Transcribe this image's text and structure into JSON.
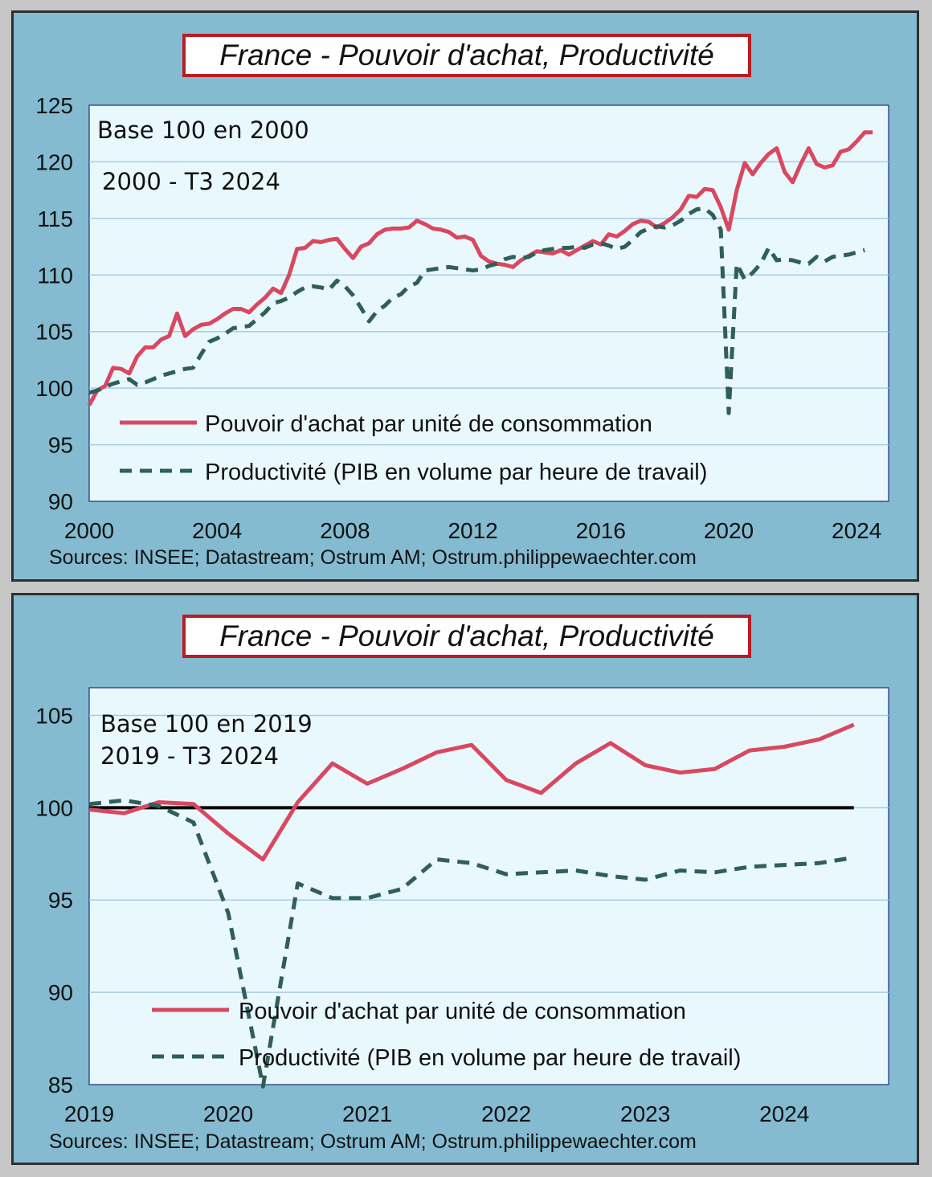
{
  "chart_data": [
    {
      "type": "line",
      "title": "France - Pouvoir d'achat, Productivité",
      "note_lines": [
        "Base 100 en 2000",
        "2000 - T3 2024"
      ],
      "source": "Sources: INSEE; Datastream; Ostrum AM; Ostrum.philippewaechter.com",
      "xlim": [
        2000,
        2025
      ],
      "ylim": [
        90,
        125
      ],
      "yticks": [
        90,
        95,
        100,
        105,
        110,
        115,
        120,
        125
      ],
      "xticks": [
        2000,
        2004,
        2008,
        2012,
        2016,
        2020,
        2024
      ],
      "grid": true,
      "legend_position": "bottom-left",
      "colors": {
        "purchasing_power": "#d9485f",
        "productivity": "#2f5f58",
        "plot_bg": "#e9f8fd",
        "grid": "#a8cce6"
      },
      "series": [
        {
          "name": "Pouvoir d'achat par unité de consommation",
          "style": "solid",
          "x": [
            2000.0,
            2000.25,
            2000.5,
            2000.75,
            2001.0,
            2001.25,
            2001.5,
            2001.75,
            2002.0,
            2002.25,
            2002.5,
            2002.75,
            2003.0,
            2003.25,
            2003.5,
            2003.75,
            2004.0,
            2004.25,
            2004.5,
            2004.75,
            2005.0,
            2005.25,
            2005.5,
            2005.75,
            2006.0,
            2006.25,
            2006.5,
            2006.75,
            2007.0,
            2007.25,
            2007.5,
            2007.75,
            2008.0,
            2008.25,
            2008.5,
            2008.75,
            2009.0,
            2009.25,
            2009.5,
            2009.75,
            2010.0,
            2010.25,
            2010.5,
            2010.75,
            2011.0,
            2011.25,
            2011.5,
            2011.75,
            2012.0,
            2012.25,
            2012.5,
            2012.75,
            2013.0,
            2013.25,
            2013.5,
            2013.75,
            2014.0,
            2014.25,
            2014.5,
            2014.75,
            2015.0,
            2015.25,
            2015.5,
            2015.75,
            2016.0,
            2016.25,
            2016.5,
            2016.75,
            2017.0,
            2017.25,
            2017.5,
            2017.75,
            2018.0,
            2018.25,
            2018.5,
            2018.75,
            2019.0,
            2019.25,
            2019.5,
            2019.75,
            2020.0,
            2020.25,
            2020.5,
            2020.75,
            2021.0,
            2021.25,
            2021.5,
            2021.75,
            2022.0,
            2022.25,
            2022.5,
            2022.75,
            2023.0,
            2023.25,
            2023.5,
            2023.75,
            2024.0,
            2024.25,
            2024.5
          ],
          "values": [
            98.5,
            99.8,
            100.2,
            101.8,
            101.7,
            101.3,
            102.8,
            103.6,
            103.6,
            104.3,
            104.6,
            106.6,
            104.6,
            105.2,
            105.6,
            105.7,
            106.1,
            106.6,
            107.0,
            107.0,
            106.7,
            107.4,
            108.0,
            108.8,
            108.4,
            110.0,
            112.3,
            112.4,
            113.0,
            112.9,
            113.1,
            113.2,
            112.3,
            111.5,
            112.5,
            112.8,
            113.6,
            114.0,
            114.1,
            114.1,
            114.2,
            114.8,
            114.5,
            114.1,
            114.0,
            113.8,
            113.3,
            113.4,
            113.1,
            111.7,
            111.2,
            111.0,
            110.9,
            110.7,
            111.3,
            111.7,
            112.1,
            112.0,
            111.9,
            112.2,
            111.8,
            112.2,
            112.6,
            113.0,
            112.7,
            113.6,
            113.4,
            113.9,
            114.5,
            114.8,
            114.7,
            114.2,
            114.6,
            115.1,
            115.8,
            117.0,
            116.9,
            117.6,
            117.5,
            116.0,
            114.0,
            117.5,
            119.9,
            118.9,
            119.9,
            120.7,
            121.2,
            119.1,
            118.2,
            119.8,
            121.2,
            119.8,
            119.5,
            119.7,
            120.9,
            121.1,
            121.8,
            122.6,
            122.6
          ],
          "display_x": [
            2000.0,
            2000.25,
            2000.5,
            2000.75,
            2001.0,
            2001.25,
            2001.5,
            2001.75,
            2002.0,
            2002.25,
            2002.5,
            2002.75,
            2003.0,
            2003.25,
            2003.5,
            2003.75,
            2004.0,
            2004.25,
            2004.5,
            2004.75,
            2005.0,
            2005.25,
            2005.5,
            2005.75,
            2006.0,
            2006.25,
            2006.5,
            2006.75,
            2007.0,
            2007.25,
            2007.5,
            2007.75,
            2008.0,
            2008.25,
            2008.5,
            2008.75,
            2009.0,
            2009.25,
            2009.5,
            2009.75,
            2010.0,
            2010.25,
            2010.5,
            2010.75,
            2011.0,
            2011.25,
            2011.5,
            2011.75,
            2012.0,
            2012.25,
            2012.5,
            2012.75,
            2013.0,
            2013.25,
            2013.5,
            2013.75,
            2014.0,
            2014.25,
            2014.5,
            2014.75,
            2015.0,
            2015.25,
            2015.5,
            2015.75,
            2016.0,
            2016.25,
            2016.5,
            2016.75,
            2017.0,
            2017.25,
            2017.5,
            2017.75,
            2018.0,
            2018.25,
            2018.5,
            2018.75,
            2019.0,
            2019.25,
            2019.5,
            2019.75,
            2020.0,
            2020.25,
            2020.5,
            2020.75,
            2021.0,
            2021.25,
            2021.5,
            2021.75,
            2022.0,
            2022.25,
            2022.5,
            2022.75,
            2023.0,
            2023.25,
            2023.5,
            2023.75,
            2024.0,
            2024.25,
            2024.5
          ]
        },
        {
          "name": "Productivité (PIB en volume par heure de travail)",
          "style": "dashed",
          "x": [
            2000.0,
            2000.25,
            2000.5,
            2000.75,
            2001.0,
            2001.25,
            2001.5,
            2001.75,
            2002.0,
            2002.25,
            2002.5,
            2002.75,
            2003.0,
            2003.25,
            2003.5,
            2003.75,
            2004.0,
            2004.25,
            2004.5,
            2004.75,
            2005.0,
            2005.25,
            2005.5,
            2005.75,
            2006.0,
            2006.25,
            2006.5,
            2006.75,
            2007.0,
            2007.25,
            2007.5,
            2007.75,
            2008.0,
            2008.25,
            2008.5,
            2008.75,
            2009.0,
            2009.25,
            2009.5,
            2009.75,
            2010.0,
            2010.25,
            2010.5,
            2010.75,
            2011.0,
            2011.25,
            2011.5,
            2011.75,
            2012.0,
            2012.25,
            2012.5,
            2012.75,
            2013.0,
            2013.25,
            2013.5,
            2013.75,
            2014.0,
            2014.25,
            2014.5,
            2014.75,
            2015.0,
            2015.25,
            2015.5,
            2015.75,
            2016.0,
            2016.25,
            2016.5,
            2016.75,
            2017.0,
            2017.25,
            2017.5,
            2017.75,
            2018.0,
            2018.25,
            2018.5,
            2018.75,
            2019.0,
            2019.25,
            2019.5,
            2019.75,
            2020.0,
            2020.25,
            2020.5,
            2020.75,
            2021.0,
            2021.25,
            2021.5,
            2021.75,
            2022.0,
            2022.25,
            2022.5,
            2022.75,
            2023.0,
            2023.25,
            2023.5,
            2023.75,
            2024.0,
            2024.25
          ],
          "values": [
            99.6,
            99.8,
            100.1,
            100.4,
            100.6,
            100.8,
            100.3,
            100.5,
            100.8,
            101.1,
            101.3,
            101.5,
            101.7,
            101.8,
            103.0,
            104.1,
            104.4,
            104.8,
            105.3,
            105.4,
            105.5,
            106.1,
            106.7,
            107.5,
            107.7,
            108.0,
            108.5,
            108.9,
            109.0,
            108.9,
            108.7,
            109.5,
            109.0,
            108.2,
            107.1,
            105.9,
            106.8,
            107.3,
            108.0,
            108.3,
            109.0,
            109.3,
            110.4,
            110.5,
            110.6,
            110.7,
            110.6,
            110.5,
            110.4,
            110.5,
            110.8,
            111.0,
            111.4,
            111.6,
            111.5,
            111.6,
            112.0,
            112.2,
            112.3,
            112.4,
            112.4,
            112.5,
            112.4,
            112.7,
            112.8,
            112.6,
            112.3,
            112.5,
            113.1,
            113.8,
            114.1,
            114.3,
            114.2,
            114.4,
            114.8,
            115.4,
            115.8,
            115.9,
            115.3,
            114.0,
            97.8,
            111.0,
            109.6,
            110.2,
            111.0,
            112.4,
            111.3,
            111.4,
            111.3,
            111.1,
            111.0,
            111.6,
            111.2,
            111.6,
            111.7,
            111.8,
            112.0,
            112.2
          ],
          "display_x": [
            2000.0,
            2000.25,
            2000.5,
            2000.75,
            2001.0,
            2001.25,
            2001.5,
            2001.75,
            2002.0,
            2002.25,
            2002.5,
            2002.75,
            2003.0,
            2003.25,
            2003.5,
            2003.75,
            2004.0,
            2004.25,
            2004.5,
            2004.75,
            2005.0,
            2005.25,
            2005.5,
            2005.75,
            2006.0,
            2006.25,
            2006.5,
            2006.75,
            2007.0,
            2007.25,
            2007.5,
            2007.75,
            2008.0,
            2008.25,
            2008.5,
            2008.75,
            2009.0,
            2009.25,
            2009.5,
            2009.75,
            2010.0,
            2010.25,
            2010.5,
            2010.75,
            2011.0,
            2011.25,
            2011.5,
            2011.75,
            2012.0,
            2012.25,
            2012.5,
            2012.75,
            2013.0,
            2013.25,
            2013.5,
            2013.75,
            2014.0,
            2014.25,
            2014.5,
            2014.75,
            2015.0,
            2015.25,
            2015.5,
            2015.75,
            2016.0,
            2016.25,
            2016.5,
            2016.75,
            2017.0,
            2017.25,
            2017.5,
            2017.75,
            2018.0,
            2018.25,
            2018.5,
            2018.75,
            2019.0,
            2019.25,
            2019.5,
            2019.75,
            2020.0,
            2020.25,
            2020.5,
            2020.75,
            2021.0,
            2021.25,
            2021.5,
            2021.75,
            2022.0,
            2022.25,
            2022.5,
            2022.75,
            2023.0,
            2023.25,
            2023.5,
            2023.75,
            2024.0,
            2024.25
          ]
        }
      ]
    },
    {
      "type": "line",
      "title": "France - Pouvoir d'achat, Productivité",
      "note_lines": [
        "Base 100 en 2019",
        "2019 - T3 2024"
      ],
      "source": "Sources: INSEE; Datastream; Ostrum AM; Ostrum.philippewaechter.com",
      "xlim": [
        2019,
        2024.75
      ],
      "ylim": [
        85,
        106.5
      ],
      "yticks": [
        85,
        90,
        95,
        100,
        105
      ],
      "xticks": [
        2019,
        2020,
        2021,
        2022,
        2023,
        2024
      ],
      "grid": true,
      "reference_line": 100,
      "legend_position": "bottom-left",
      "colors": {
        "purchasing_power": "#d9485f",
        "productivity": "#2f5f58",
        "reference": "#000000",
        "plot_bg": "#e9f8fd",
        "grid": "#a8cce6"
      },
      "series": [
        {
          "name": "Pouvoir d'achat par unité de consommation",
          "style": "solid",
          "x": [
            "T1 2019",
            "T2 2019",
            "T3 2019",
            "T4 2019",
            "T1 2020",
            "T2 2020",
            "T3 2020",
            "T4 2020",
            "T1 2021",
            "T2 2021",
            "T3 2021",
            "T4 2021",
            "T1 2022",
            "T2 2022",
            "T3 2022",
            "T4 2022",
            "T1 2023",
            "T2 2023",
            "T3 2023",
            "T4 2023",
            "T1 2024",
            "T2 2024",
            "T3 2024"
          ],
          "values": [
            99.9,
            99.7,
            100.3,
            100.2,
            98.6,
            97.2,
            100.3,
            102.4,
            101.3,
            102.1,
            103.0,
            103.4,
            101.5,
            100.8,
            102.4,
            103.5,
            102.3,
            101.9,
            102.1,
            103.1,
            103.3,
            103.7,
            104.5
          ],
          "display_x": [
            2019.0,
            2019.25,
            2019.5,
            2019.75,
            2020.0,
            2020.25,
            2020.5,
            2020.75,
            2021.0,
            2021.25,
            2021.5,
            2021.75,
            2022.0,
            2022.25,
            2022.5,
            2022.75,
            2023.0,
            2023.25,
            2023.5,
            2023.75,
            2024.0,
            2024.25,
            2024.5
          ]
        },
        {
          "name": "Productivité (PIB en volume par heure de travail)",
          "style": "dashed",
          "x": [
            "T1 2019",
            "T2 2019",
            "T3 2019",
            "T4 2019",
            "T1 2020",
            "T2 2020",
            "T3 2020",
            "T4 2020",
            "T1 2021",
            "T2 2021",
            "T3 2021",
            "T4 2021",
            "T1 2022",
            "T2 2022",
            "T3 2022",
            "T4 2022",
            "T1 2023",
            "T2 2023",
            "T3 2023",
            "T4 2023",
            "T1 2024",
            "T2 2024",
            "T3 2024"
          ],
          "values": [
            100.2,
            100.4,
            100.1,
            99.2,
            94.3,
            84.9,
            95.9,
            95.1,
            95.1,
            95.6,
            97.2,
            97.0,
            96.4,
            96.5,
            96.6,
            96.3,
            96.1,
            96.6,
            96.5,
            96.8,
            96.9,
            97.0,
            97.3
          ],
          "display_x": [
            2019.0,
            2019.25,
            2019.5,
            2019.75,
            2020.0,
            2020.25,
            2020.5,
            2020.75,
            2021.0,
            2021.25,
            2021.5,
            2021.75,
            2022.0,
            2022.25,
            2022.5,
            2022.75,
            2023.0,
            2023.25,
            2023.5,
            2023.75,
            2024.0,
            2024.25,
            2024.5
          ]
        }
      ]
    }
  ]
}
